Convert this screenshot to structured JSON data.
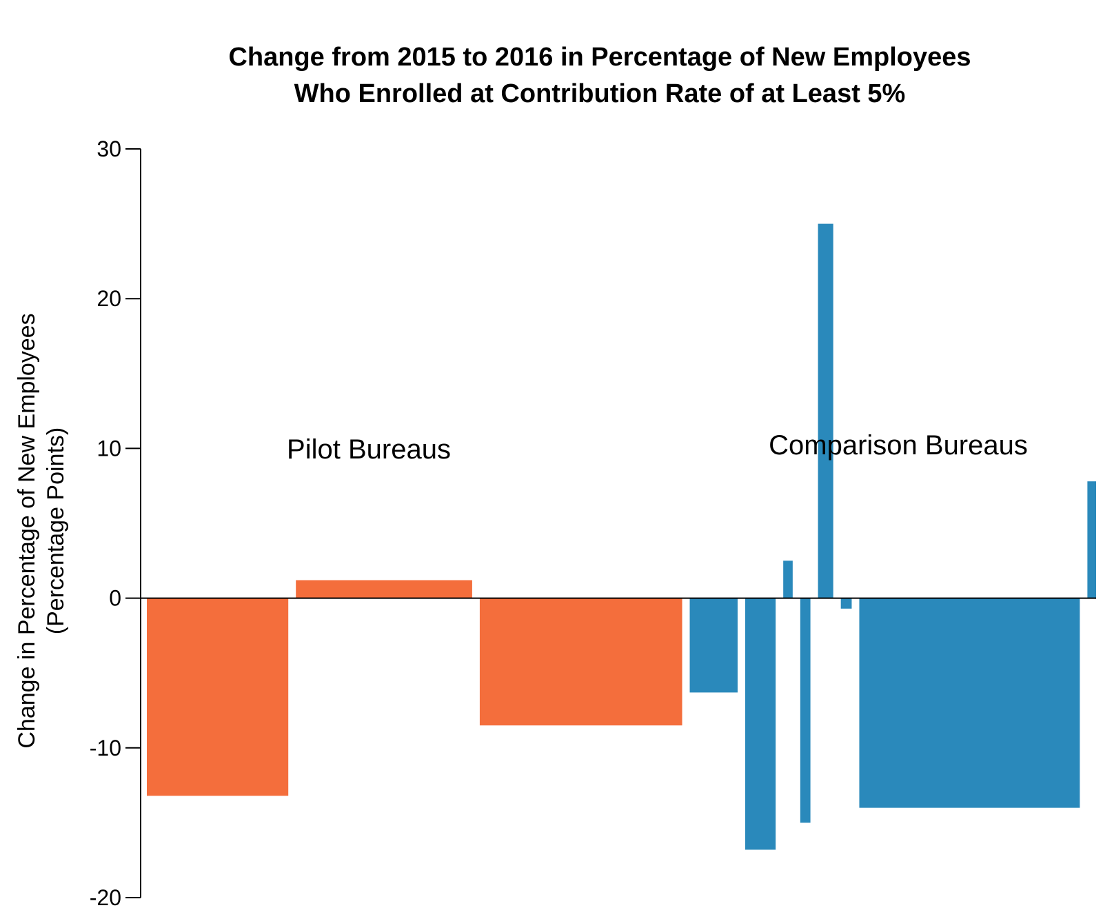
{
  "chart_data": {
    "type": "bar",
    "title": [
      "Change from 2015 to 2016 in Percentage of New Employees",
      "Who Enrolled at Contribution Rate of at Least 5%"
    ],
    "ylabel": [
      "Change in Percentage of New Employees",
      "(Percentage Points)"
    ],
    "ylim": [
      -20,
      30
    ],
    "yticks": [
      30,
      20,
      10,
      0,
      -10,
      -20
    ],
    "groups": [
      {
        "name": "Pilot Bureaus",
        "color": "#F46E3C"
      },
      {
        "name": "Comparison Bureaus",
        "color": "#2A89BB"
      }
    ],
    "series": [
      {
        "group": 0,
        "value": -13.2,
        "weight": 195
      },
      {
        "group": 0,
        "value": 1.2,
        "weight": 243
      },
      {
        "group": 0,
        "value": -8.5,
        "weight": 279
      },
      {
        "group": 1,
        "value": -6.3,
        "weight": 66
      },
      {
        "group": 1,
        "value": -16.8,
        "weight": 42
      },
      {
        "group": 1,
        "value": 2.5,
        "weight": 13
      },
      {
        "group": 1,
        "value": -15.0,
        "weight": 14
      },
      {
        "group": 1,
        "value": 25.0,
        "weight": 21
      },
      {
        "group": 1,
        "value": -0.7,
        "weight": 15
      },
      {
        "group": 1,
        "value": -14.0,
        "weight": 304
      },
      {
        "group": 1,
        "value": 7.8,
        "weight": 12
      }
    ]
  }
}
